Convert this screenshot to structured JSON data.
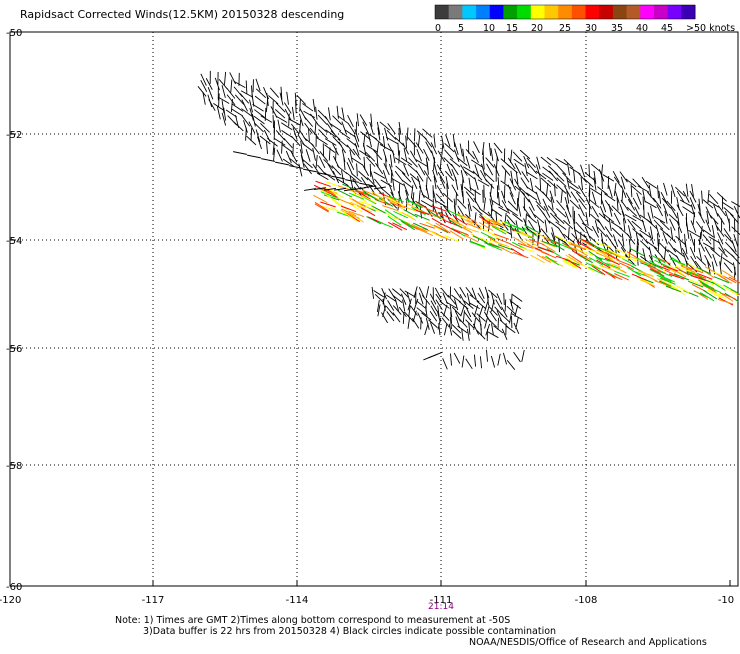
{
  "title": "Rapidsact Corrected Winds(12.5KM) 20150328 descending",
  "legend": {
    "labels": [
      "0",
      "5",
      "10",
      "15",
      "20",
      "25",
      "30",
      "35",
      "40",
      "45",
      ">50 knots"
    ],
    "colors": [
      "#3c3c3c",
      "#7a7a7a",
      "#00c8ff",
      "#0080ff",
      "#0000ff",
      "#00a000",
      "#00dc00",
      "#ffff00",
      "#ffc800",
      "#ff8c00",
      "#ff5000",
      "#ff0000",
      "#c80000",
      "#8b4513",
      "#b45a28",
      "#ff00ff",
      "#c800c8",
      "#7800ff",
      "#3c00b4"
    ]
  },
  "axes": {
    "x_ticks": [
      "-120",
      "-117",
      "-114",
      "-111",
      "-108",
      "-10"
    ],
    "y_ticks": [
      "-50",
      "-52",
      "-54",
      "-56",
      "-58",
      "-60"
    ],
    "time_label": "21:14",
    "time_label_color": "#8b008b"
  },
  "notes": [
    "Note: 1) Times are GMT 2)Times along bottom correspond to measurement at -50S",
    "3)Data buffer is 22 hrs from 20150328 4) Black circles indicate possible contamination"
  ],
  "credit": "NOAA/NESDIS/Office of Research and Applications"
}
